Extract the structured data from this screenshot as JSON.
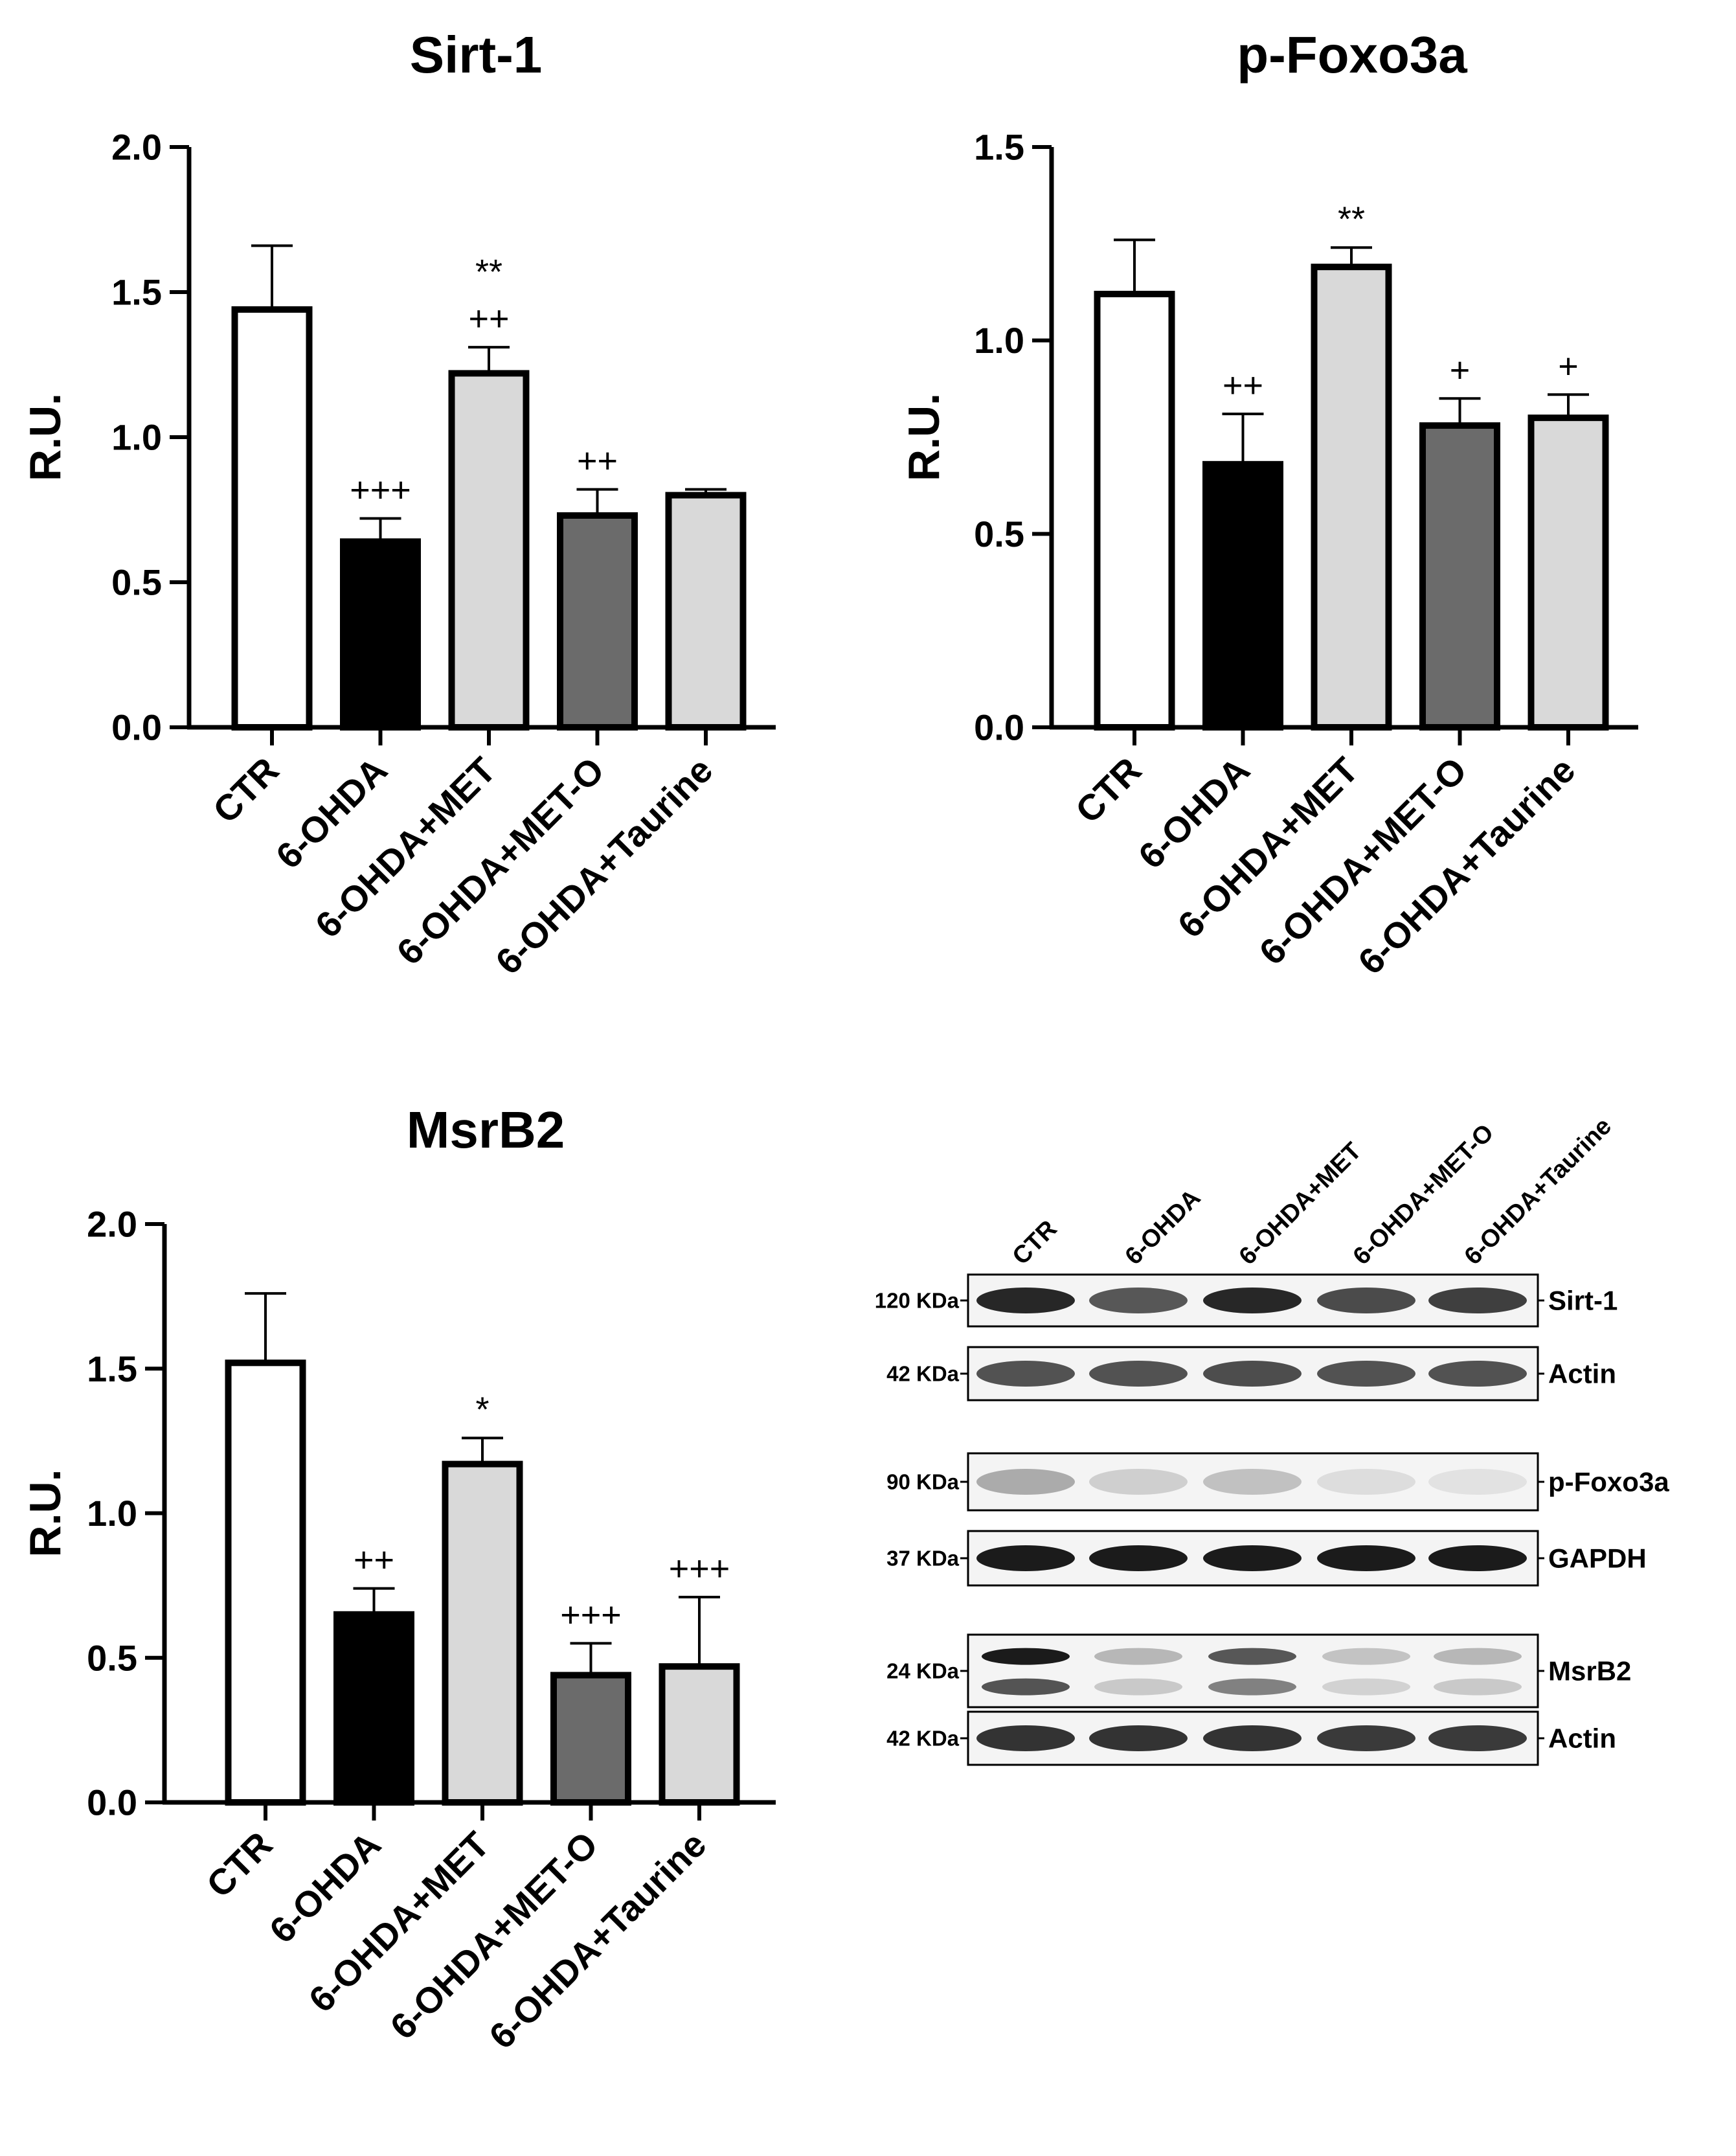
{
  "chart_data": [
    {
      "type": "bar",
      "title": "Sirt-1",
      "ylabel": "R.U.",
      "categories": [
        "CTR",
        "6-OHDA",
        "6-OHDA+MET",
        "6-OHDA+MET-O",
        "6-OHDA+Taurine"
      ],
      "values": [
        1.44,
        0.64,
        1.22,
        0.73,
        0.8
      ],
      "errors": [
        0.22,
        0.08,
        0.09,
        0.09,
        0.02
      ],
      "fills": [
        "#ffffff",
        "#000000",
        "#d9d9d9",
        "#6b6b6b",
        "#d9d9d9"
      ],
      "annotations": [
        [],
        [
          "+++"
        ],
        [
          "**",
          "++"
        ],
        [
          "++"
        ],
        []
      ],
      "ylim": [
        0,
        2.0
      ],
      "yticks": [
        "0.0",
        "0.5",
        "1.0",
        "1.5",
        "2.0"
      ],
      "grid": false
    },
    {
      "type": "bar",
      "title": "p-Foxo3a",
      "ylabel": "R.U.",
      "categories": [
        "CTR",
        "6-OHDA",
        "6-OHDA+MET",
        "6-OHDA+MET-O",
        "6-OHDA+Taurine"
      ],
      "values": [
        1.12,
        0.68,
        1.19,
        0.78,
        0.8
      ],
      "errors": [
        0.14,
        0.13,
        0.05,
        0.07,
        0.06
      ],
      "fills": [
        "#ffffff",
        "#000000",
        "#d9d9d9",
        "#6b6b6b",
        "#d9d9d9"
      ],
      "annotations": [
        [],
        [
          "++"
        ],
        [
          "**"
        ],
        [
          "+"
        ],
        [
          "+"
        ]
      ],
      "ylim": [
        0,
        1.5
      ],
      "yticks": [
        "0.0",
        "0.5",
        "1.0",
        "1.5"
      ],
      "grid": false
    },
    {
      "type": "bar",
      "title": "MsrB2",
      "ylabel": "R.U.",
      "categories": [
        "CTR",
        "6-OHDA",
        "6-OHDA+MET",
        "6-OHDA+MET-O",
        "6-OHDA+Taurine"
      ],
      "values": [
        1.52,
        0.65,
        1.17,
        0.44,
        0.47
      ],
      "errors": [
        0.24,
        0.09,
        0.09,
        0.11,
        0.24
      ],
      "fills": [
        "#ffffff",
        "#000000",
        "#d9d9d9",
        "#6b6b6b",
        "#d9d9d9"
      ],
      "annotations": [
        [],
        [
          "++"
        ],
        [
          "*"
        ],
        [
          "+++"
        ],
        [
          "+++"
        ]
      ],
      "ylim": [
        0,
        2.0
      ],
      "yticks": [
        "0.0",
        "0.5",
        "1.0",
        "1.5",
        "2.0"
      ],
      "grid": false
    }
  ],
  "western_blot": {
    "lanes": [
      "CTR",
      "6-OHDA",
      "6-OHDA+MET",
      "6-OHDA+MET-O",
      "6-OHDA+Taurine"
    ],
    "rows": [
      {
        "protein": "Sirt-1",
        "kda": "120 KDa",
        "intensity": [
          0.9,
          0.7,
          0.9,
          0.75,
          0.8
        ],
        "double": false
      },
      {
        "protein": "Actin",
        "kda": "42 KDa",
        "intensity": [
          0.72,
          0.72,
          0.74,
          0.72,
          0.72
        ],
        "double": false
      },
      {
        "protein": "p-Foxo3a",
        "kda": "90 KDa",
        "intensity": [
          0.35,
          0.2,
          0.26,
          0.14,
          0.12
        ],
        "double": false
      },
      {
        "protein": "GAPDH",
        "kda": "37 KDa",
        "intensity": [
          0.95,
          0.95,
          0.95,
          0.95,
          0.95
        ],
        "double": false
      },
      {
        "protein": "MsrB2",
        "kda": "24 KDa",
        "intensity": [
          0.95,
          0.3,
          0.7,
          0.25,
          0.3
        ],
        "double": true
      },
      {
        "protein": "Actin",
        "kda": "42 KDa",
        "intensity": [
          0.85,
          0.85,
          0.85,
          0.82,
          0.82
        ],
        "double": false
      }
    ]
  }
}
